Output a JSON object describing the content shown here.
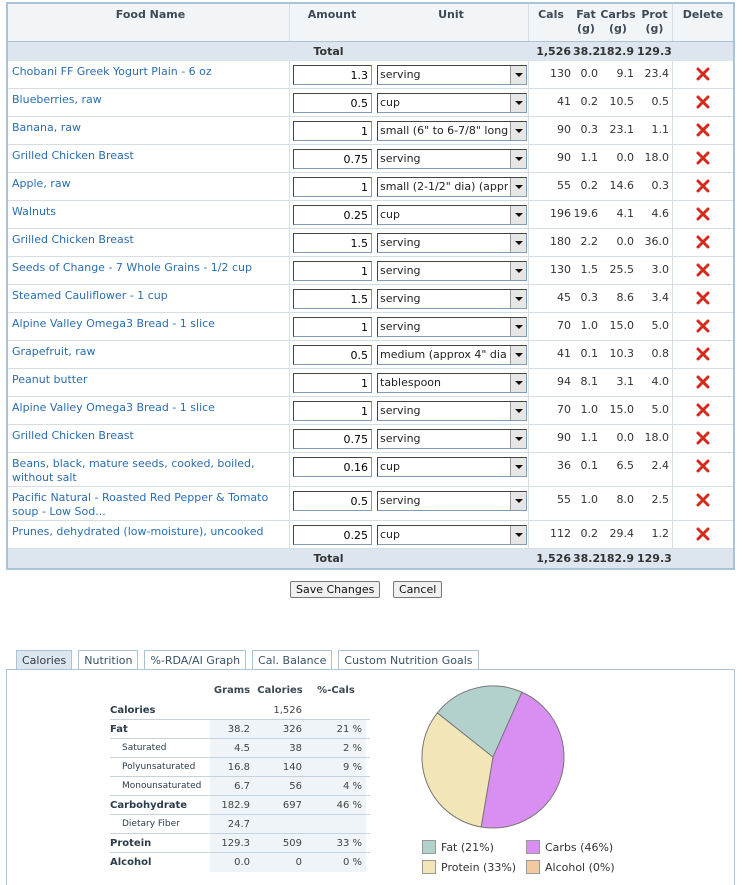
{
  "food_table": {
    "headers": {
      "name": "Food Name",
      "amount": "Amount",
      "unit": "Unit",
      "cals": "Cals",
      "fat": "Fat (g)",
      "carbs": "Carbs (g)",
      "prot": "Prot (g)",
      "delete": "Delete"
    },
    "total_top": {
      "label": "Total",
      "cals": "1,526",
      "fat": "38.2",
      "carbs": "182.9",
      "prot": "129.3"
    },
    "rows": [
      {
        "name": "Chobani FF Greek Yogurt Plain - 6 oz",
        "amount": "1.3",
        "unit": "serving",
        "cals": "130",
        "fat": "0.0",
        "carbs": "9.1",
        "prot": "23.4"
      },
      {
        "name": "Blueberries, raw",
        "amount": "0.5",
        "unit": "cup",
        "cals": "41",
        "fat": "0.2",
        "carbs": "10.5",
        "prot": "0.5"
      },
      {
        "name": "Banana, raw",
        "amount": "1",
        "unit": "small (6\" to 6-7/8\" long",
        "cals": "90",
        "fat": "0.3",
        "carbs": "23.1",
        "prot": "1.1"
      },
      {
        "name": "Grilled Chicken Breast",
        "amount": "0.75",
        "unit": "serving",
        "cals": "90",
        "fat": "1.1",
        "carbs": "0.0",
        "prot": "18.0"
      },
      {
        "name": "Apple, raw",
        "amount": "1",
        "unit": "small (2-1/2\" dia) (appr",
        "cals": "55",
        "fat": "0.2",
        "carbs": "14.6",
        "prot": "0.3"
      },
      {
        "name": "Walnuts",
        "amount": "0.25",
        "unit": "cup",
        "cals": "196",
        "fat": "19.6",
        "carbs": "4.1",
        "prot": "4.6"
      },
      {
        "name": "Grilled Chicken Breast",
        "amount": "1.5",
        "unit": "serving",
        "cals": "180",
        "fat": "2.2",
        "carbs": "0.0",
        "prot": "36.0"
      },
      {
        "name": "Seeds of Change - 7 Whole Grains - 1/2 cup",
        "amount": "1",
        "unit": "serving",
        "cals": "130",
        "fat": "1.5",
        "carbs": "25.5",
        "prot": "3.0"
      },
      {
        "name": "Steamed Cauliflower - 1 cup",
        "amount": "1.5",
        "unit": "serving",
        "cals": "45",
        "fat": "0.3",
        "carbs": "8.6",
        "prot": "3.4"
      },
      {
        "name": "Alpine Valley Omega3 Bread - 1 slice",
        "amount": "1",
        "unit": "serving",
        "cals": "70",
        "fat": "1.0",
        "carbs": "15.0",
        "prot": "5.0"
      },
      {
        "name": "Grapefruit, raw",
        "amount": "0.5",
        "unit": "medium (approx 4\" dia",
        "cals": "41",
        "fat": "0.1",
        "carbs": "10.3",
        "prot": "0.8"
      },
      {
        "name": "Peanut butter",
        "amount": "1",
        "unit": "tablespoon",
        "cals": "94",
        "fat": "8.1",
        "carbs": "3.1",
        "prot": "4.0"
      },
      {
        "name": "Alpine Valley Omega3 Bread - 1 slice",
        "amount": "1",
        "unit": "serving",
        "cals": "70",
        "fat": "1.0",
        "carbs": "15.0",
        "prot": "5.0"
      },
      {
        "name": "Grilled Chicken Breast",
        "amount": "0.75",
        "unit": "serving",
        "cals": "90",
        "fat": "1.1",
        "carbs": "0.0",
        "prot": "18.0"
      },
      {
        "name": "Beans, black, mature seeds, cooked, boiled, without salt",
        "amount": "0.16",
        "unit": "cup",
        "cals": "36",
        "fat": "0.1",
        "carbs": "6.5",
        "prot": "2.4"
      },
      {
        "name": "Pacific Natural - Roasted Red Pepper & Tomato soup - Low Sod...",
        "amount": "0.5",
        "unit": "serving",
        "cals": "55",
        "fat": "1.0",
        "carbs": "8.0",
        "prot": "2.5"
      },
      {
        "name": "Prunes, dehydrated (low-moisture), uncooked",
        "amount": "0.25",
        "unit": "cup",
        "cals": "112",
        "fat": "0.2",
        "carbs": "29.4",
        "prot": "1.2"
      }
    ],
    "total_bottom": {
      "label": "Total",
      "cals": "1,526",
      "fat": "38.2",
      "carbs": "182.9",
      "prot": "129.3"
    }
  },
  "buttons": {
    "save": "Save Changes",
    "cancel": "Cancel"
  },
  "tabs": [
    "Calories",
    "Nutrition",
    "%-RDA/AI Graph",
    "Cal. Balance",
    "Custom Nutrition Goals"
  ],
  "summary": {
    "headers": {
      "grams": "Grams",
      "calories": "Calories",
      "pct": "%-Cals"
    },
    "rows": [
      {
        "label": "Calories",
        "grams": "",
        "calories": "1,526",
        "pct": ""
      },
      {
        "label": "Fat",
        "grams": "38.2",
        "calories": "326",
        "pct": "21 %"
      },
      {
        "label": "Saturated",
        "grams": "4.5",
        "calories": "38",
        "pct": "2 %"
      },
      {
        "label": "Polyunsaturated",
        "grams": "16.8",
        "calories": "140",
        "pct": "9 %"
      },
      {
        "label": "Monounsaturated",
        "grams": "6.7",
        "calories": "56",
        "pct": "4 %"
      },
      {
        "label": "Carbohydrate",
        "grams": "182.9",
        "calories": "697",
        "pct": "46 %"
      },
      {
        "label": "Dietary Fiber",
        "grams": "24.7",
        "calories": "",
        "pct": ""
      },
      {
        "label": "Protein",
        "grams": "129.3",
        "calories": "509",
        "pct": "33 %"
      },
      {
        "label": "Alcohol",
        "grams": "0.0",
        "calories": "0",
        "pct": "0 %"
      }
    ]
  },
  "chart_data": {
    "type": "pie",
    "title": "",
    "slices": [
      {
        "name": "Fat",
        "label": "Fat  (21%)",
        "value": 21,
        "color": "#b3d1cc"
      },
      {
        "name": "Carbs",
        "label": "Carbs  (46%)",
        "value": 46,
        "color": "#d98ff2"
      },
      {
        "name": "Protein",
        "label": "Protein  (33%)",
        "value": 33,
        "color": "#f2e6b8"
      },
      {
        "name": "Alcohol",
        "label": "Alcohol  (0%)",
        "value": 0,
        "color": "#f2c9a0"
      }
    ]
  },
  "colors": {
    "link": "#2a6db0",
    "border": "#a9c4d8",
    "delete_x": "#d42a1e"
  },
  "icons": {
    "delete": "delete-x-icon",
    "dropdown": "chevron-down-icon"
  }
}
